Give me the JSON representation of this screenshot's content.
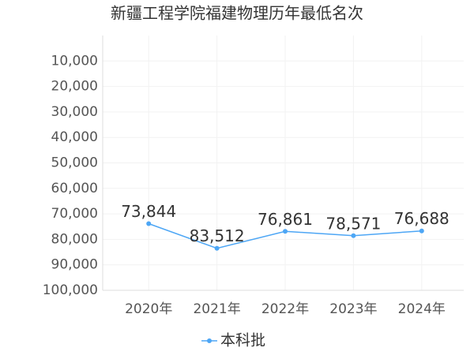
{
  "chart_data": {
    "type": "line",
    "title": "新疆工程学院福建物理历年最低名次",
    "categories": [
      "2020年",
      "2021年",
      "2022年",
      "2023年",
      "2024年"
    ],
    "series": [
      {
        "name": "本科批",
        "color": "#4da6f5",
        "values": [
          73844,
          83512,
          76861,
          78571,
          76688
        ],
        "value_labels": [
          "73,844",
          "83,512",
          "76,861",
          "78,571",
          "76,688"
        ]
      }
    ],
    "ylim": [
      0,
      100000
    ],
    "inverted": true,
    "yticks": [
      {
        "value": 10000,
        "label": "10,000"
      },
      {
        "value": 20000,
        "label": "20,000"
      },
      {
        "value": 30000,
        "label": "30,000"
      },
      {
        "value": 40000,
        "label": "40,000"
      },
      {
        "value": 50000,
        "label": "50,000"
      },
      {
        "value": 60000,
        "label": "60,000"
      },
      {
        "value": 70000,
        "label": "70,000"
      },
      {
        "value": 80000,
        "label": "80,000"
      },
      {
        "value": 90000,
        "label": "90,000"
      },
      {
        "value": 100000,
        "label": "100,000"
      }
    ],
    "grid": true,
    "legend": "bottom"
  }
}
